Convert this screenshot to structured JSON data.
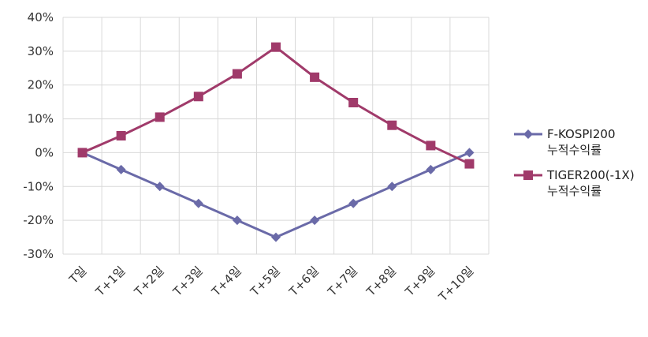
{
  "chart_data": {
    "type": "line",
    "categories": [
      "T일",
      "T+1일",
      "T+2일",
      "T+3일",
      "T+4일",
      "T+5일",
      "T+6일",
      "T+7일",
      "T+8일",
      "T+9일",
      "T+10일"
    ],
    "series": [
      {
        "name": "F-KOSPI200\n누적수익률",
        "color": "#6a6aa8",
        "marker": "diamond",
        "values": [
          0,
          -5,
          -10,
          -15,
          -20,
          -25,
          -20,
          -15,
          -10,
          -5,
          0
        ]
      },
      {
        "name": "TIGER200(-1X)\n누적수익률",
        "color": "#a03a6a",
        "marker": "square",
        "values": [
          0,
          5,
          10.5,
          16.6,
          23.3,
          31.2,
          22.3,
          14.8,
          8.1,
          2.1,
          -3.3
        ]
      }
    ],
    "ylim": [
      -30,
      40
    ],
    "yticks": [
      "40%",
      "30%",
      "20%",
      "10%",
      "0%",
      "-10%",
      "-20%",
      "-30%"
    ],
    "grid": true,
    "legend": "right",
    "xlabel": "",
    "ylabel": ""
  }
}
